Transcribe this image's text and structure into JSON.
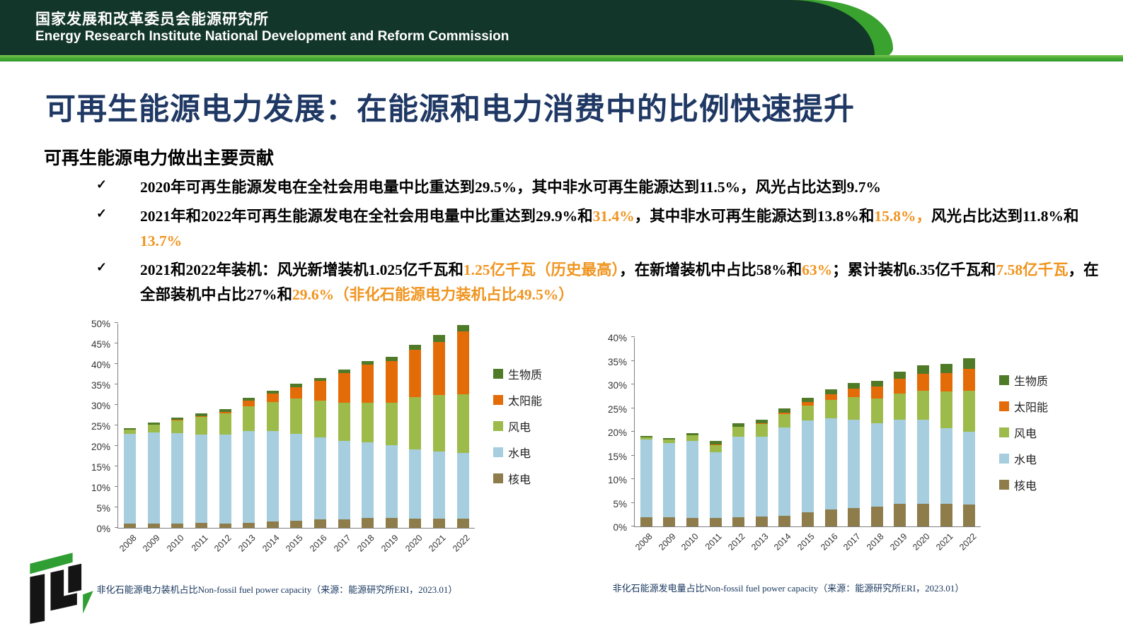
{
  "header": {
    "org_zh": "国家发展和改革委员会能源研究所",
    "org_en": "Energy Research Institute National Development and Reform Commission"
  },
  "slide": {
    "title": "可再生能源电力发展：在能源和电力消费中的比例快速提升",
    "subtitle": "可再生能源电力做出主要贡献",
    "bullet_marker": "✓",
    "bullets": [
      {
        "segments": [
          {
            "t": "2020年可再生能源发电在全社会用电量中比重达到29.5%，其中非水可再生能源达到11.5%，风光占比达到9.7%",
            "c": "default"
          }
        ]
      },
      {
        "segments": [
          {
            "t": "2021年和2022年可再生能源发电在全社会用电量中比重达到29.9%和",
            "c": "default"
          },
          {
            "t": "31.4%",
            "c": "accent"
          },
          {
            "t": "，其中非水可再生能源达到13.8%和",
            "c": "default"
          },
          {
            "t": "15.8%，",
            "c": "accent"
          },
          {
            "t": "风光占比达到11.8%和",
            "c": "default"
          },
          {
            "t": "13.7%",
            "c": "accent"
          }
        ]
      },
      {
        "segments": [
          {
            "t": "2021和2022年装机：风光新增装机1.025亿千瓦和",
            "c": "default"
          },
          {
            "t": "1.25亿千瓦（历史最高）",
            "c": "accent"
          },
          {
            "t": "，在新增装机中占比58%和",
            "c": "default"
          },
          {
            "t": "63%",
            "c": "accent"
          },
          {
            "t": "；累计装机6.35亿千瓦和",
            "c": "default"
          },
          {
            "t": "7.58亿千瓦",
            "c": "accent"
          },
          {
            "t": "，在全部装机中占比27%和",
            "c": "default"
          },
          {
            "t": "29.6%",
            "c": "accent"
          },
          {
            "t": "（非化石能源电力装机占比49.5%）",
            "c": "accent"
          }
        ]
      }
    ]
  },
  "series_colors": {
    "生物质": "#4f7a28",
    "太阳能": "#e36c09",
    "风电": "#9dbb4a",
    "水电": "#a6cede",
    "核电": "#8e7d4a"
  },
  "chart_data": [
    {
      "type": "bar",
      "stacked": true,
      "caption": "非化石能源电力装机占比Non-fossil fuel power capacity（来源：能源研究所ERI，2023.01）",
      "categories": [
        "2008",
        "2009",
        "2010",
        "2011",
        "2012",
        "2013",
        "2014",
        "2015",
        "2016",
        "2017",
        "2018",
        "2019",
        "2020",
        "2021",
        "2022"
      ],
      "series": [
        {
          "name": "核电",
          "values": [
            1.1,
            1.0,
            1.1,
            1.2,
            1.1,
            1.2,
            1.5,
            1.8,
            2.0,
            2.0,
            2.4,
            2.4,
            2.3,
            2.2,
            2.2
          ]
        },
        {
          "name": "水电",
          "values": [
            21.8,
            22.2,
            22.0,
            21.5,
            21.6,
            22.4,
            22.2,
            21.1,
            20.1,
            19.3,
            18.5,
            17.7,
            16.8,
            16.5,
            16.1
          ]
        },
        {
          "name": "风电",
          "values": [
            1.0,
            2.0,
            3.1,
            4.4,
            5.3,
            6.1,
            7.0,
            8.6,
            9.0,
            9.2,
            9.7,
            10.4,
            12.8,
            13.8,
            14.3
          ]
        },
        {
          "name": "太阳能",
          "values": [
            0.0,
            0.0,
            0.1,
            0.2,
            0.3,
            1.3,
            2.1,
            2.9,
            4.7,
            7.3,
            9.2,
            10.2,
            11.5,
            12.9,
            15.3
          ]
        },
        {
          "name": "生物质",
          "values": [
            0.4,
            0.5,
            0.6,
            0.6,
            0.7,
            0.7,
            0.7,
            0.7,
            0.7,
            0.8,
            0.9,
            1.1,
            1.3,
            1.6,
            1.6
          ]
        }
      ],
      "legend": [
        "生物质",
        "太阳能",
        "风电",
        "水电",
        "核电"
      ],
      "ylim": [
        0,
        50
      ],
      "ystep": 5,
      "yticks": [
        "0%",
        "5%",
        "10%",
        "15%",
        "20%",
        "25%",
        "30%",
        "35%",
        "40%",
        "45%",
        "50%"
      ],
      "grid": false,
      "legend_position": "right"
    },
    {
      "type": "bar",
      "stacked": true,
      "caption": "非化石能源发电量占比Non-fossil fuel power capacity（来源：能源研究所ERI，2023.01）",
      "categories": [
        "2008",
        "2009",
        "2010",
        "2011",
        "2012",
        "2013",
        "2014",
        "2015",
        "2016",
        "2017",
        "2018",
        "2019",
        "2020",
        "2021",
        "2022"
      ],
      "series": [
        {
          "name": "核电",
          "values": [
            2.0,
            1.9,
            1.8,
            1.8,
            2.0,
            2.1,
            2.3,
            3.0,
            3.6,
            3.9,
            4.2,
            4.8,
            4.8,
            4.8,
            4.7
          ]
        },
        {
          "name": "水电",
          "values": [
            16.4,
            15.7,
            16.2,
            13.9,
            17.0,
            16.9,
            18.6,
            19.4,
            19.2,
            18.6,
            17.6,
            17.8,
            17.8,
            15.9,
            15.3
          ]
        },
        {
          "name": "风电",
          "values": [
            0.4,
            0.7,
            1.2,
            1.5,
            2.0,
            2.6,
            2.8,
            3.2,
            4.0,
            4.8,
            5.2,
            5.5,
            6.1,
            7.8,
            8.6
          ]
        },
        {
          "name": "太阳能",
          "values": [
            0.0,
            0.0,
            0.0,
            0.1,
            0.1,
            0.2,
            0.4,
            0.7,
            1.1,
            1.8,
            2.5,
            3.1,
            3.5,
            3.9,
            4.7
          ]
        },
        {
          "name": "生物质",
          "values": [
            0.3,
            0.4,
            0.5,
            0.7,
            0.7,
            0.7,
            0.8,
            0.9,
            1.1,
            1.2,
            1.3,
            1.5,
            1.8,
            2.0,
            2.3
          ]
        }
      ],
      "legend": [
        "生物质",
        "太阳能",
        "风电",
        "水电",
        "核电"
      ],
      "ylim": [
        0,
        40
      ],
      "ystep": 5,
      "yticks": [
        "0%",
        "5%",
        "10%",
        "15%",
        "20%",
        "25%",
        "30%",
        "35%",
        "40%"
      ],
      "grid": false,
      "legend_position": "right"
    }
  ]
}
